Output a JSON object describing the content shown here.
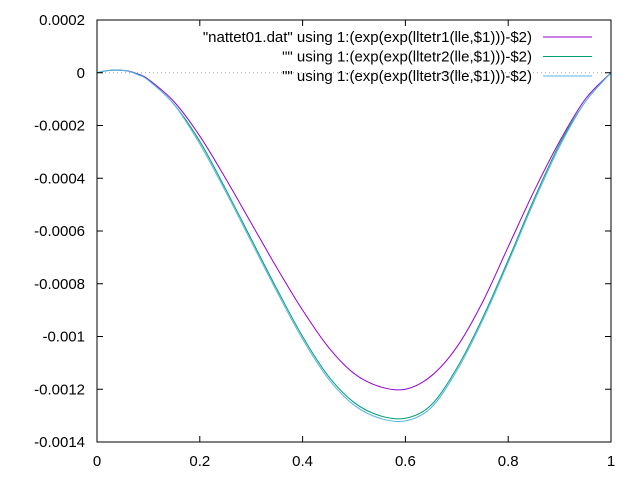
{
  "chart_data": {
    "type": "line",
    "title": "",
    "xlabel": "",
    "ylabel": "",
    "xlim": [
      0,
      1
    ],
    "ylim": [
      -0.0014,
      0.0002
    ],
    "x_ticks": [
      0,
      0.2,
      0.4,
      0.6,
      0.8,
      1
    ],
    "x_tick_labels": [
      "0",
      "0.2",
      "0.4",
      "0.6",
      "0.8",
      "1"
    ],
    "y_ticks": [
      0.0002,
      0,
      -0.0002,
      -0.0004,
      -0.0006,
      -0.0008,
      -0.001,
      -0.0012,
      -0.0014
    ],
    "y_tick_labels": [
      "0.0002",
      "0",
      "-0.0002",
      "-0.0004",
      "-0.0006",
      "-0.0008",
      "-0.001",
      "-0.0012",
      "-0.0014"
    ],
    "grid": false,
    "zero_line": true,
    "legend_position": "top-right",
    "series": [
      {
        "name": "\"nattet01.dat\" using 1:(exp(exp(lltetr1(lle,$1)))-$2)",
        "color": "#9400d3",
        "x": [
          0,
          0.02,
          0.04,
          0.06,
          0.08,
          0.1,
          0.15,
          0.2,
          0.25,
          0.3,
          0.35,
          0.4,
          0.45,
          0.5,
          0.55,
          0.6,
          0.65,
          0.7,
          0.75,
          0.8,
          0.85,
          0.9,
          0.95,
          1
        ],
        "y": [
          0,
          8e-06,
          1e-05,
          7e-06,
          -5e-06,
          -2.5e-05,
          -0.00011,
          -0.00024,
          -0.0004,
          -0.00057,
          -0.00074,
          -0.0009,
          -0.00104,
          -0.00114,
          -0.00119,
          -0.0012,
          -0.00115,
          -0.00104,
          -0.00087,
          -0.00066,
          -0.00045,
          -0.00026,
          -0.0001,
          0
        ]
      },
      {
        "name": "\"\" using 1:(exp(exp(lltetr2(lle,$1)))-$2)",
        "color": "#009e73",
        "x": [
          0,
          0.02,
          0.04,
          0.06,
          0.08,
          0.1,
          0.15,
          0.2,
          0.25,
          0.3,
          0.35,
          0.4,
          0.45,
          0.5,
          0.55,
          0.6,
          0.65,
          0.7,
          0.75,
          0.8,
          0.85,
          0.9,
          0.95,
          1
        ],
        "y": [
          0,
          8e-06,
          1e-05,
          6e-06,
          -7e-06,
          -2.8e-05,
          -0.00012,
          -0.00026,
          -0.00044,
          -0.00063,
          -0.00082,
          -0.001,
          -0.00115,
          -0.00125,
          -0.0013,
          -0.00131,
          -0.00126,
          -0.00112,
          -0.00093,
          -0.00071,
          -0.00048,
          -0.00027,
          -0.00011,
          0
        ]
      },
      {
        "name": "\"\" using 1:(exp(exp(lltetr3(lle,$1)))-$2)",
        "color": "#56b4e9",
        "x": [
          0,
          0.02,
          0.04,
          0.06,
          0.08,
          0.1,
          0.15,
          0.2,
          0.25,
          0.3,
          0.35,
          0.4,
          0.45,
          0.5,
          0.55,
          0.6,
          0.65,
          0.7,
          0.75,
          0.8,
          0.85,
          0.9,
          0.95,
          1
        ],
        "y": [
          0,
          8e-06,
          1e-05,
          6e-06,
          -8e-06,
          -2.9e-05,
          -0.00012,
          -0.00027,
          -0.00045,
          -0.00064,
          -0.00083,
          -0.00101,
          -0.00116,
          -0.00126,
          -0.00131,
          -0.00132,
          -0.00127,
          -0.00113,
          -0.00094,
          -0.00072,
          -0.00049,
          -0.00028,
          -0.00011,
          0
        ]
      }
    ]
  }
}
